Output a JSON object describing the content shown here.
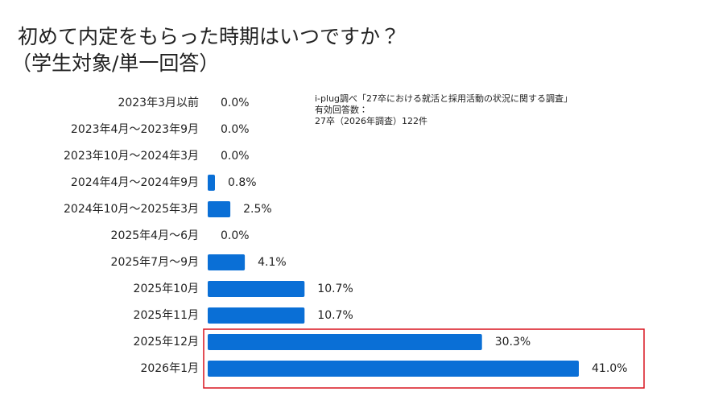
{
  "chart_data": {
    "type": "hbar",
    "title": "初めて内定をもらった時期はいつですか？",
    "subtitle": "（学生対象/単一回答）",
    "notes": [
      "i-plug調べ「27卒における就活と採用活動の状況に関する調査」",
      "有効回答数：",
      "27卒（2026年調査）122件"
    ],
    "categories": [
      "2023年3月以前",
      "2023年4月～2023年9月",
      "2023年10月～2024年3月",
      "2024年4月～2024年9月",
      "2024年10月～2025年3月",
      "2025年4月～6月",
      "2025年7月～9月",
      "2025年10月",
      "2025年11月",
      "2025年12月",
      "2026年1月"
    ],
    "values": [
      0,
      0,
      0,
      0.8,
      2.5,
      0,
      4.1,
      10.7,
      10.7,
      30.3,
      41.0
    ],
    "value_labels": [
      "0.0%",
      "0.0%",
      "0.0%",
      "0.8%",
      "2.5%",
      "0.0%",
      "4.1%",
      "10.7%",
      "10.7%",
      "30.3%",
      "41.0%"
    ],
    "color": "#0a6fd6"
  }
}
